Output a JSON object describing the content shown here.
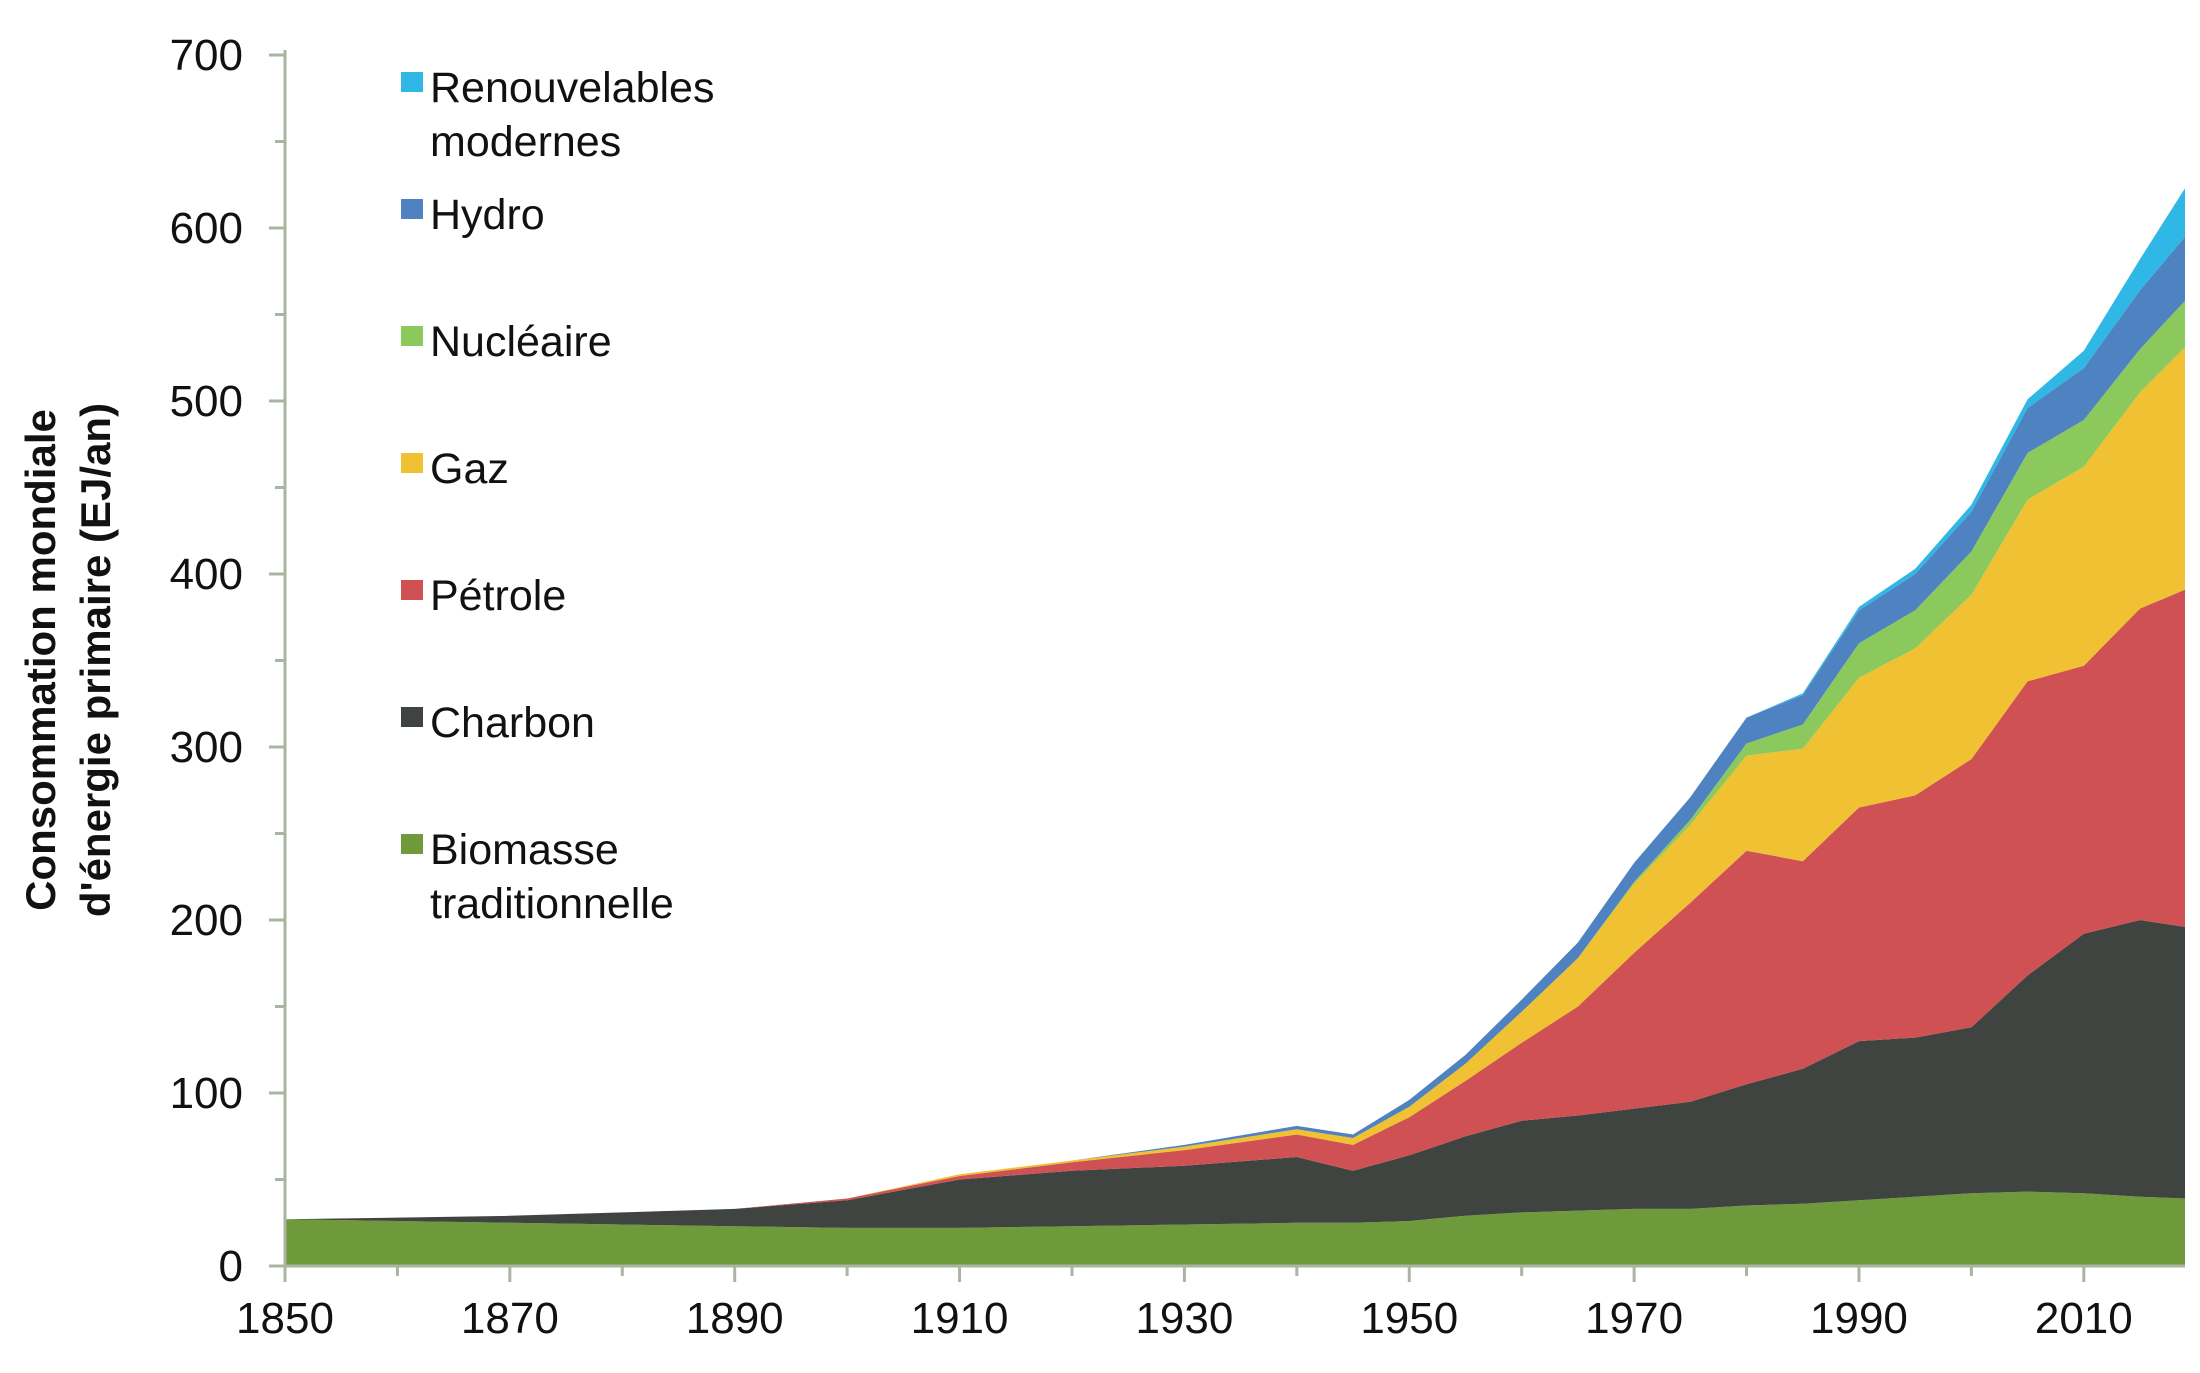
{
  "chart_data": {
    "type": "area",
    "stacked": true,
    "title": "",
    "xlabel": "",
    "ylabel_lines": [
      "Consommation mondiale",
      "d'énergie primaire (EJ/an)"
    ],
    "xlim": [
      1850,
      2019
    ],
    "ylim": [
      0,
      700
    ],
    "x_ticks": [
      1850,
      1870,
      1890,
      1910,
      1930,
      1950,
      1970,
      1990,
      2010
    ],
    "y_ticks": [
      0,
      100,
      200,
      300,
      400,
      500,
      600,
      700
    ],
    "grid": false,
    "legend_position": "top-left",
    "x": [
      1850,
      1860,
      1870,
      1880,
      1890,
      1900,
      1910,
      1920,
      1930,
      1940,
      1945,
      1950,
      1955,
      1960,
      1965,
      1970,
      1975,
      1980,
      1985,
      1990,
      1995,
      2000,
      2005,
      2010,
      2015,
      2019
    ],
    "series": [
      {
        "name": "Biomasse traditionnelle",
        "color": "#6f9a3b",
        "values": [
          27,
          26,
          25,
          24,
          23,
          22,
          22,
          23,
          24,
          25,
          25,
          26,
          29,
          31,
          32,
          33,
          33,
          35,
          36,
          38,
          40,
          42,
          43,
          42,
          40,
          39
        ]
      },
      {
        "name": "Charbon",
        "color": "#3f4441",
        "values": [
          0,
          2,
          4,
          7,
          10,
          16,
          28,
          32,
          34,
          38,
          30,
          38,
          46,
          53,
          55,
          58,
          62,
          70,
          78,
          92,
          92,
          96,
          125,
          150,
          160,
          157
        ]
      },
      {
        "name": "Pétrole",
        "color": "#cf5153",
        "values": [
          0,
          0,
          0,
          0,
          0,
          1,
          2,
          5,
          9,
          13,
          15,
          22,
          32,
          45,
          63,
          90,
          115,
          135,
          120,
          135,
          140,
          155,
          170,
          155,
          180,
          195
        ]
      },
      {
        "name": "Gaz",
        "color": "#efc133",
        "values": [
          0,
          0,
          0,
          0,
          0,
          0,
          1,
          1,
          2,
          3,
          4,
          6,
          10,
          18,
          28,
          40,
          45,
          55,
          65,
          75,
          85,
          95,
          105,
          115,
          125,
          140
        ]
      },
      {
        "name": "Nucléaire",
        "color": "#8cc95c",
        "values": [
          0,
          0,
          0,
          0,
          0,
          0,
          0,
          0,
          0,
          0,
          0,
          0,
          0,
          0,
          0,
          1,
          3,
          7,
          14,
          20,
          22,
          25,
          27,
          27,
          25,
          27
        ]
      },
      {
        "name": "Hydro",
        "color": "#4e82c0",
        "values": [
          0,
          0,
          0,
          0,
          0,
          0,
          0,
          0,
          1,
          2,
          2,
          4,
          5,
          7,
          9,
          11,
          13,
          15,
          17,
          19,
          21,
          23,
          26,
          30,
          34,
          37
        ]
      },
      {
        "name": "Renouvelables modernes",
        "color": "#2fb7e6",
        "values": [
          0,
          0,
          0,
          0,
          0,
          0,
          0,
          0,
          0,
          0,
          0,
          0,
          0,
          0,
          0,
          0,
          0,
          0,
          1,
          2,
          3,
          4,
          5,
          10,
          18,
          28
        ]
      }
    ],
    "legend": [
      {
        "lines": [
          "Renouvelables",
          "modernes"
        ],
        "color": "#2fb7e6"
      },
      {
        "lines": [
          "Hydro"
        ],
        "color": "#4e82c0"
      },
      {
        "lines": [
          "Nucléaire"
        ],
        "color": "#8cc95c"
      },
      {
        "lines": [
          "Gaz"
        ],
        "color": "#efc133"
      },
      {
        "lines": [
          "Pétrole"
        ],
        "color": "#cf5153"
      },
      {
        "lines": [
          "Charbon"
        ],
        "color": "#3f4441"
      },
      {
        "lines": [
          "Biomasse",
          "traditionnelle"
        ],
        "color": "#6f9a3b"
      }
    ],
    "axis_color": "#a9b5a1"
  }
}
